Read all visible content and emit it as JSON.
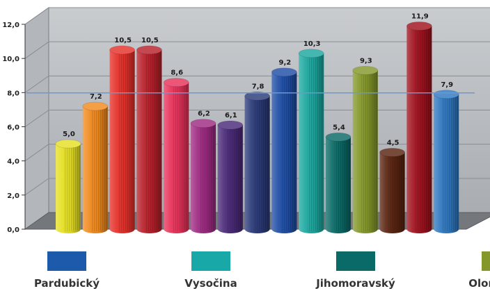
{
  "chart_data": {
    "type": "bar",
    "title": "",
    "xlabel": "",
    "ylabel": "",
    "ylim": [
      0,
      12
    ],
    "yticks": [
      "0,0",
      "2,0",
      "4,0",
      "6,0",
      "8,0",
      "10,0",
      "12,0"
    ],
    "reference_line": 7.9,
    "values": [
      5.0,
      7.2,
      10.5,
      10.5,
      8.6,
      6.2,
      6.1,
      7.8,
      9.2,
      10.3,
      5.4,
      9.3,
      4.5,
      11.9,
      7.9
    ],
    "labels": [
      "5,0",
      "7,2",
      "10,5",
      "10,5",
      "8,6",
      "6,2",
      "6,1",
      "7,8",
      "9,2",
      "10,3",
      "5,4",
      "9,3",
      "4,5",
      "11,9",
      "7,9"
    ],
    "colors": [
      "#e6e023",
      "#f28a1e",
      "#e6302a",
      "#b8202a",
      "#e8335a",
      "#9e2a82",
      "#4a2a78",
      "#2a3a78",
      "#1f4ea6",
      "#1ca8a0",
      "#0a6a66",
      "#84982a",
      "#5a2410",
      "#a0121e",
      "#2f78c0"
    ],
    "grid": true,
    "legend_position": "bottom",
    "legend": [
      {
        "label": "Pardubický",
        "color": "#1e5aab"
      },
      {
        "label": "Vysočina",
        "color": "#18a8a8"
      },
      {
        "label": "Jihomoravský",
        "color": "#0a6a68"
      },
      {
        "label": "Olomoucký",
        "color": "#84982a"
      }
    ]
  }
}
